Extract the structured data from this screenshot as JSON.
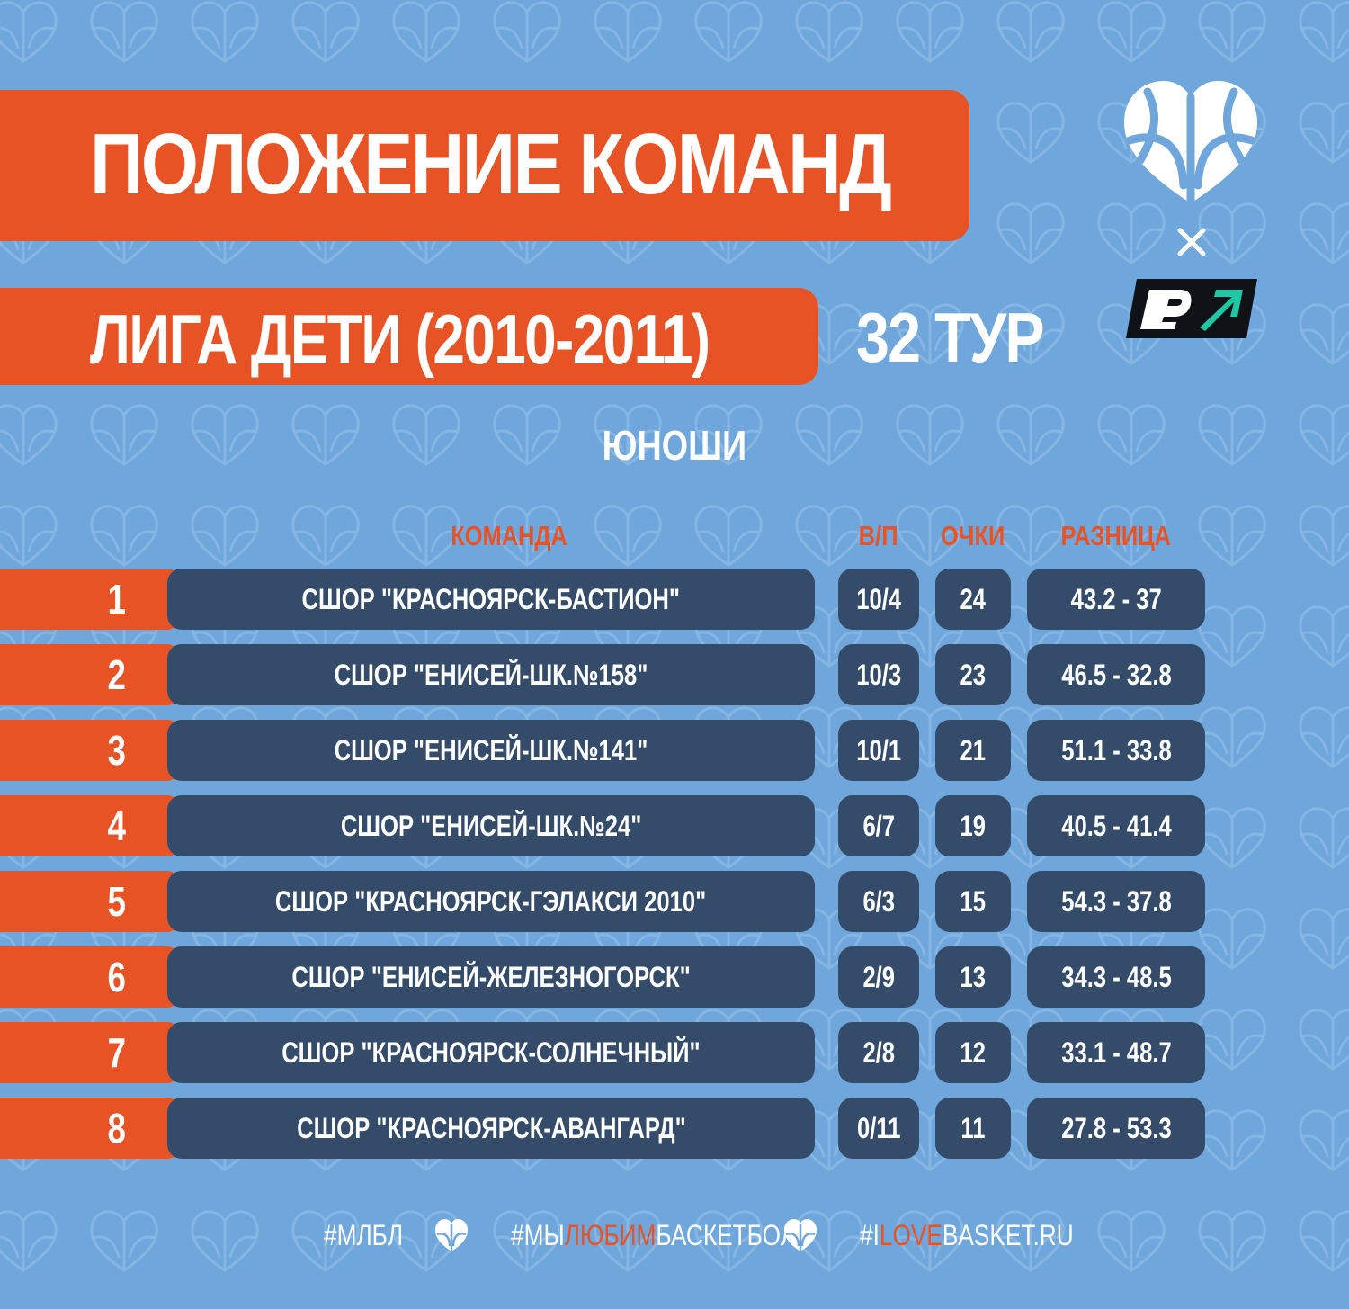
{
  "header": {
    "title": "ПОЛОЖЕНИЕ КОМАНД",
    "league": "ЛИГА ДЕТИ (2010-2011)",
    "round": "32 ТУР"
  },
  "division": "ЮНОШИ",
  "columns": {
    "team": "КОМАНДА",
    "wl": "В/П",
    "points": "ОЧКИ",
    "diff": "РАЗНИЦА"
  },
  "standings": [
    {
      "rank": "1",
      "team": "СШОР \"КРАСНОЯРСК-БАСТИОН\"",
      "wl": "10/4",
      "points": "24",
      "diff": "43.2 - 37"
    },
    {
      "rank": "2",
      "team": "СШОР \"ЕНИСЕЙ-ШК.№158\"",
      "wl": "10/3",
      "points": "23",
      "diff": "46.5 - 32.8"
    },
    {
      "rank": "3",
      "team": "СШОР \"ЕНИСЕЙ-ШК.№141\"",
      "wl": "10/1",
      "points": "21",
      "diff": "51.1 - 33.8"
    },
    {
      "rank": "4",
      "team": "СШОР \"ЕНИСЕЙ-ШК.№24\"",
      "wl": "6/7",
      "points": "19",
      "diff": "40.5 - 41.4"
    },
    {
      "rank": "5",
      "team": "СШОР \"КРАСНОЯРСК-ГЭЛАКСИ 2010\"",
      "wl": "6/3",
      "points": "15",
      "diff": "54.3 - 37.8"
    },
    {
      "rank": "6",
      "team": "СШОР \"ЕНИСЕЙ-ЖЕЛЕЗНОГОРСК\"",
      "wl": "2/9",
      "points": "13",
      "diff": "34.3 - 48.5"
    },
    {
      "rank": "7",
      "team": "СШОР \"КРАСНОЯРСК-СОЛНЕЧНЫЙ\"",
      "wl": "2/8",
      "points": "12",
      "diff": "33.1 - 48.7"
    },
    {
      "rank": "8",
      "team": "СШОР \"КРАСНОЯРСК-АВАНГАРД\"",
      "wl": "0/11",
      "points": "11",
      "diff": "27.8 - 53.3"
    }
  ],
  "footer": {
    "tag1": "#МЛБЛ",
    "tag2_pre": "#МЫ",
    "tag2_hl": "ЛЮБИМ",
    "tag2_post": "БАСКЕТБОЛ",
    "tag3_pre": "#I",
    "tag3_hl": "LOVE",
    "tag3_post": "BASKET.RU"
  },
  "icons": {
    "logo": "heart-basketball-icon",
    "partner": "r7-logo-icon",
    "separator": "times-icon",
    "footer_separator": "basketball-heart-icon"
  },
  "colors": {
    "background": "#6fa7dc",
    "accent": "#e85325",
    "pill": "#344c6a",
    "text": "#ffffff",
    "logo_dark": "#0f1216",
    "logo_green": "#1fc7a4"
  }
}
